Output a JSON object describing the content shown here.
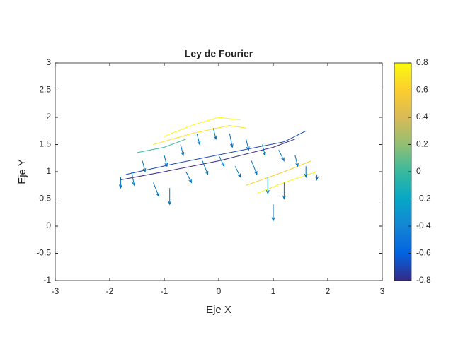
{
  "chart_data": {
    "type": "quiver",
    "title": "Ley de Fourier",
    "xlabel": "Eje X",
    "ylabel": "Eje Y",
    "xlim": [
      -3,
      3
    ],
    "xticks": [
      -3,
      -2,
      -1,
      0,
      1,
      2,
      3
    ],
    "ylim": [
      -1,
      3
    ],
    "yticks": [
      -1,
      -0.5,
      0,
      0.5,
      1,
      1.5,
      2,
      2.5,
      3
    ],
    "arrow_color": "#0072bd",
    "arrows": {
      "x": [
        -1.8,
        -1.6,
        -1.4,
        -1.2,
        -1.0,
        -0.9,
        -0.7,
        -0.6,
        -0.4,
        -0.3,
        -0.1,
        0,
        0.2,
        0.3,
        0.5,
        0.6,
        0.8,
        0.9,
        1.0,
        1.1,
        1.2,
        1.4,
        1.6,
        1.8
      ],
      "y": [
        0.9,
        1.0,
        1.2,
        0.8,
        1.3,
        0.7,
        1.5,
        1.0,
        1.7,
        1.2,
        1.8,
        1.3,
        1.7,
        1.1,
        1.6,
        1.2,
        1.5,
        0.9,
        0.4,
        1.4,
        0.8,
        1.3,
        1.1,
        0.95
      ],
      "u": [
        0,
        0.05,
        0.05,
        0.1,
        0.05,
        0,
        0.05,
        0.1,
        0.05,
        0.1,
        0.05,
        0.1,
        0.05,
        0.1,
        0.05,
        0.1,
        0.05,
        0,
        0,
        0.1,
        0,
        0.05,
        0,
        0
      ],
      "v": [
        -0.2,
        -0.25,
        -0.2,
        -0.25,
        -0.2,
        -0.3,
        -0.2,
        -0.2,
        -0.2,
        -0.25,
        -0.2,
        -0.2,
        -0.25,
        -0.2,
        -0.2,
        -0.25,
        -0.2,
        -0.3,
        -0.3,
        -0.2,
        -0.3,
        -0.2,
        -0.2,
        -0.1
      ]
    },
    "contours": [
      {
        "level": -0.8,
        "x": [
          -1.8,
          -1,
          0,
          1,
          1.4
        ],
        "y": [
          0.85,
          1.0,
          1.2,
          1.45,
          1.6
        ]
      },
      {
        "level": -0.7,
        "x": [
          -1.7,
          -0.8,
          0.2,
          1.2,
          1.6
        ],
        "y": [
          0.95,
          1.15,
          1.35,
          1.55,
          1.75
        ]
      },
      {
        "level": 0,
        "x": [
          -1.5,
          -1.0,
          -0.6
        ],
        "y": [
          1.35,
          1.45,
          1.6
        ]
      },
      {
        "level": 0.7,
        "x": [
          -1.2,
          -0.5,
          0.2,
          0.5
        ],
        "y": [
          1.5,
          1.7,
          1.85,
          1.8
        ]
      },
      {
        "level": 0.8,
        "x": [
          -1,
          -0.5,
          0,
          0.4
        ],
        "y": [
          1.65,
          1.85,
          2.0,
          1.95
        ]
      },
      {
        "level": 0.6,
        "x": [
          0.5,
          1.2,
          1.7
        ],
        "y": [
          0.75,
          1.0,
          1.2
        ]
      },
      {
        "level": 0.8,
        "x": [
          0.7,
          1.2,
          1.8
        ],
        "y": [
          0.6,
          0.8,
          1.0
        ]
      }
    ],
    "colorbar": {
      "clim": [
        -0.8,
        0.8
      ],
      "ticks": [
        -0.8,
        -0.6,
        -0.4,
        -0.2,
        0,
        0.2,
        0.4,
        0.6,
        0.8
      ],
      "colormap": [
        "#352a87",
        "#0363e1",
        "#1485d4",
        "#06a7c6",
        "#38b99e",
        "#92bf73",
        "#d9ba56",
        "#fcce2e",
        "#f9fb0e"
      ]
    }
  }
}
